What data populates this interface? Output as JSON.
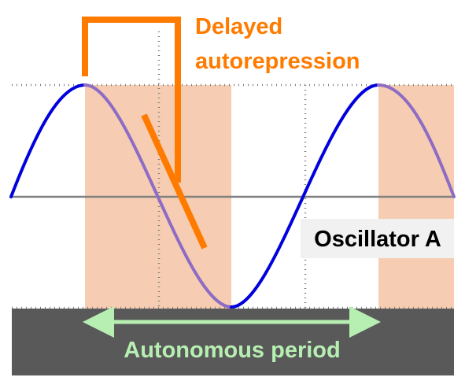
{
  "labels": {
    "delayed_autorepression_line1": "Delayed",
    "delayed_autorepression_line2": "autorepression",
    "oscillator": "Oscillator A",
    "period": "Autonomous period"
  },
  "colors": {
    "oscillator_rising": "#0000dd",
    "oscillator_falling": "#8e6cc4",
    "repression_shade": "#f6cdb3",
    "annotation": "#ff7b00",
    "axis": "#808080",
    "guide": "#7a7a7a",
    "period_bar": "#595959",
    "period_text": "#b7efb2",
    "label_box": "#f1f1f1"
  },
  "icons": {
    "period_arrow": "double-headed-arrow"
  }
}
